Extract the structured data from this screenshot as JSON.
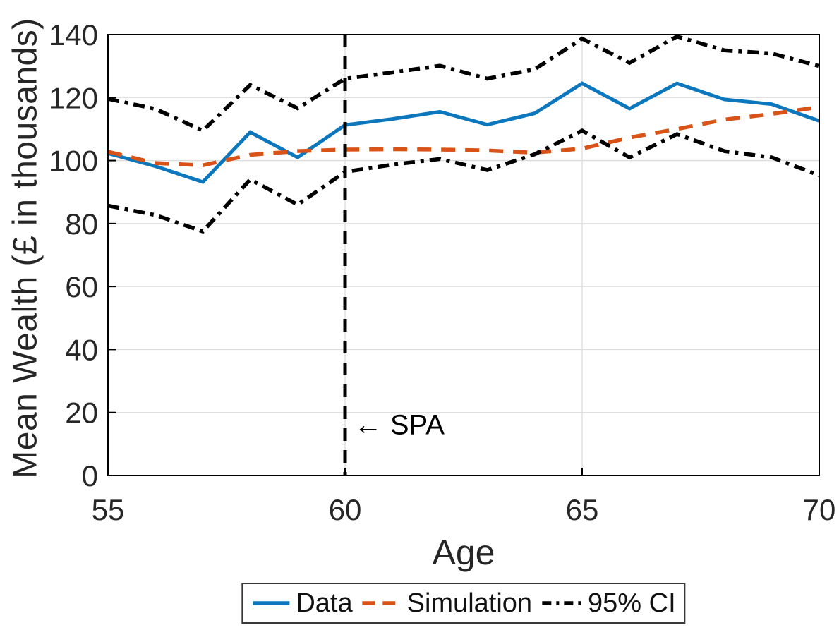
{
  "chart_data": {
    "type": "line",
    "x": [
      55,
      56,
      57,
      58,
      59,
      60,
      61,
      62,
      63,
      64,
      65,
      66,
      67,
      68,
      69,
      70
    ],
    "series": [
      {
        "name": "Data",
        "color": "#0d77bd",
        "line_style": "solid",
        "values": [
          102.3,
          98.2,
          93.2,
          109.0,
          101.0,
          111.3,
          113.2,
          115.5,
          111.4,
          115.0,
          124.5,
          116.5,
          124.5,
          119.4,
          117.9,
          112.6
        ]
      },
      {
        "name": "Simulation",
        "color": "#d95319",
        "line_style": "dashed",
        "values": [
          102.8,
          99.2,
          98.5,
          101.8,
          103.0,
          103.5,
          103.6,
          103.5,
          103.2,
          102.5,
          103.8,
          107.3,
          110.0,
          113.0,
          114.8,
          117.0
        ]
      },
      {
        "name": "95% CI upper",
        "color": "#000000",
        "line_style": "dashdot",
        "values": [
          119.6,
          116.4,
          109.5,
          124.0,
          116.6,
          126.0,
          128.0,
          130.1,
          126.0,
          129.0,
          138.7,
          131.0,
          139.4,
          135.0,
          134.0,
          130.0
        ]
      },
      {
        "name": "95% CI lower",
        "color": "#000000",
        "line_style": "dashdot",
        "values": [
          85.7,
          82.7,
          77.5,
          94.0,
          86.0,
          96.4,
          98.7,
          100.5,
          97.0,
          102.0,
          109.5,
          101.0,
          108.4,
          103.0,
          101.0,
          95.3
        ]
      }
    ],
    "xlabel": "Age",
    "ylabel": "Mean Wealth (£ in thousands)",
    "xlim": [
      55,
      70
    ],
    "ylim": [
      0,
      140
    ],
    "xticks": [
      55,
      60,
      65,
      70
    ],
    "yticks": [
      0,
      20,
      40,
      60,
      80,
      100,
      120,
      140
    ],
    "grid": true,
    "vline": {
      "x": 60,
      "color": "#000000",
      "line_style": "dashed"
    },
    "annotation": {
      "text": "← SPA",
      "x": 60.1,
      "y": 16
    },
    "legend": {
      "position": "below",
      "entries": [
        {
          "label": "Data",
          "color": "#0d77bd",
          "line_style": "solid"
        },
        {
          "label": "Simulation",
          "color": "#d95319",
          "line_style": "dashed"
        },
        {
          "label": "95% CI",
          "color": "#000000",
          "line_style": "dashdot"
        }
      ]
    }
  },
  "style_colors": {
    "grid": "#dcdcdc",
    "axis": "#000000",
    "tick_text": "#262626",
    "annotation_text": "#000000"
  }
}
